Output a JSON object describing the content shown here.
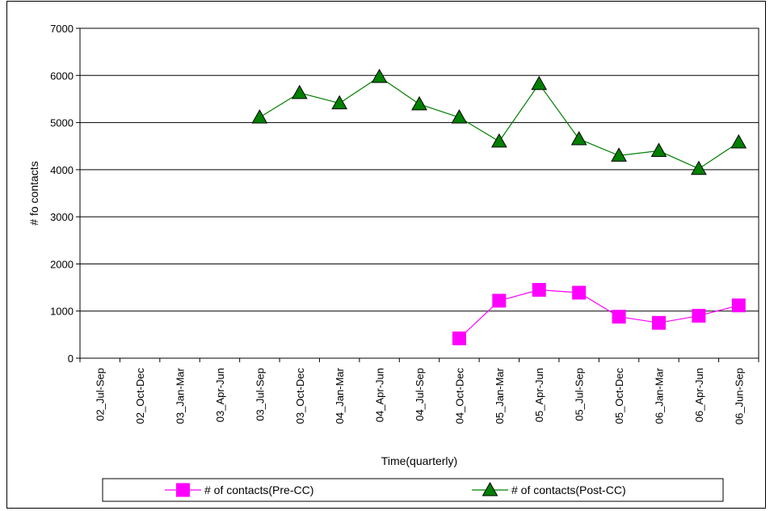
{
  "chart_data": {
    "type": "line",
    "xlabel": "Time(quarterly)",
    "ylabel": "# fo contacts",
    "ylim": [
      0,
      7000
    ],
    "yticks": [
      0,
      1000,
      2000,
      3000,
      4000,
      5000,
      6000,
      7000
    ],
    "grid": "horizontal",
    "legend_position": "bottom",
    "categories": [
      "02_Jul-Sep",
      "02_Oct-Dec",
      "03_Jan-Mar",
      "03_Apr-Jun",
      "03_Jul-Sep",
      "03_Oct-Dec",
      "04_Jan-Mar",
      "04_Apr-Jun",
      "04_Jul-Sep",
      "04_Oct-Dec",
      "05_Jan-Mar",
      "05_Apr-Jun",
      "05_Jul-Sep",
      "05_Oct-Dec",
      "06_Jan-Mar",
      "06_Apr-Jun",
      "06_Jun-Sep"
    ],
    "series": [
      {
        "name": "# of contacts(Pre-CC)",
        "color": "#ff00ff",
        "marker": "square",
        "values": [
          null,
          null,
          null,
          null,
          null,
          null,
          null,
          null,
          null,
          420,
          1220,
          1450,
          1390,
          880,
          750,
          900,
          1120
        ]
      },
      {
        "name": "# of contacts(Post-CC)",
        "color": "#008000",
        "marker": "triangle",
        "values": [
          null,
          null,
          null,
          null,
          5110,
          5630,
          5410,
          5970,
          5390,
          5110,
          4600,
          5820,
          4650,
          4300,
          4400,
          4020,
          4580
        ]
      }
    ]
  }
}
